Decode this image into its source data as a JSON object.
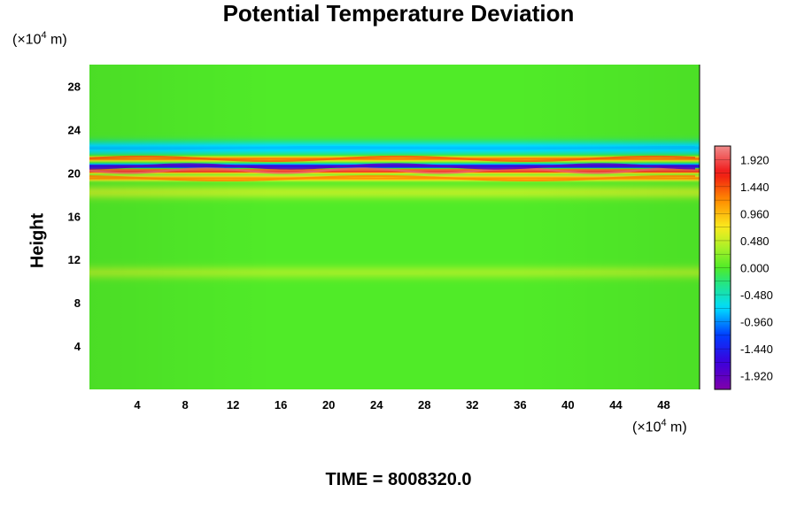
{
  "chart_data": {
    "type": "heatmap",
    "title": "Potential Temperature Deviation",
    "xlabel": "",
    "ylabel": "Height",
    "x_unit": {
      "prefix": "(×10",
      "exp": "4",
      "suffix": " m)"
    },
    "y_unit": {
      "prefix": "(×10",
      "exp": "4",
      "suffix": " m)"
    },
    "xlim": [
      0,
      51
    ],
    "ylim": [
      0,
      30
    ],
    "xticks": [
      4,
      8,
      12,
      16,
      20,
      24,
      28,
      32,
      36,
      40,
      44,
      48
    ],
    "yticks": [
      4,
      8,
      12,
      16,
      20,
      24,
      28
    ],
    "colorbar": {
      "range": [
        -2.16,
        2.16
      ],
      "labels": [
        "1.920",
        "1.440",
        "0.960",
        "0.480",
        "0.000",
        "-0.480",
        "-0.960",
        "-1.440",
        "-1.920"
      ],
      "label_values": [
        1.92,
        1.44,
        0.96,
        0.48,
        0.0,
        -0.48,
        -0.96,
        -1.44,
        -1.92
      ]
    },
    "features": [
      {
        "height": 20.2,
        "deviation": 2.0
      },
      {
        "height": 20.6,
        "deviation": -1.9
      },
      {
        "height": 21.3,
        "deviation": 1.4
      },
      {
        "height": 19.5,
        "deviation": 1.2
      },
      {
        "height": 22.3,
        "deviation": -0.8
      },
      {
        "height": 18.2,
        "deviation": 0.4
      },
      {
        "height": 10.8,
        "deviation": 0.3
      }
    ]
  },
  "footer": {
    "time_label": "TIME = 8008320.0"
  }
}
